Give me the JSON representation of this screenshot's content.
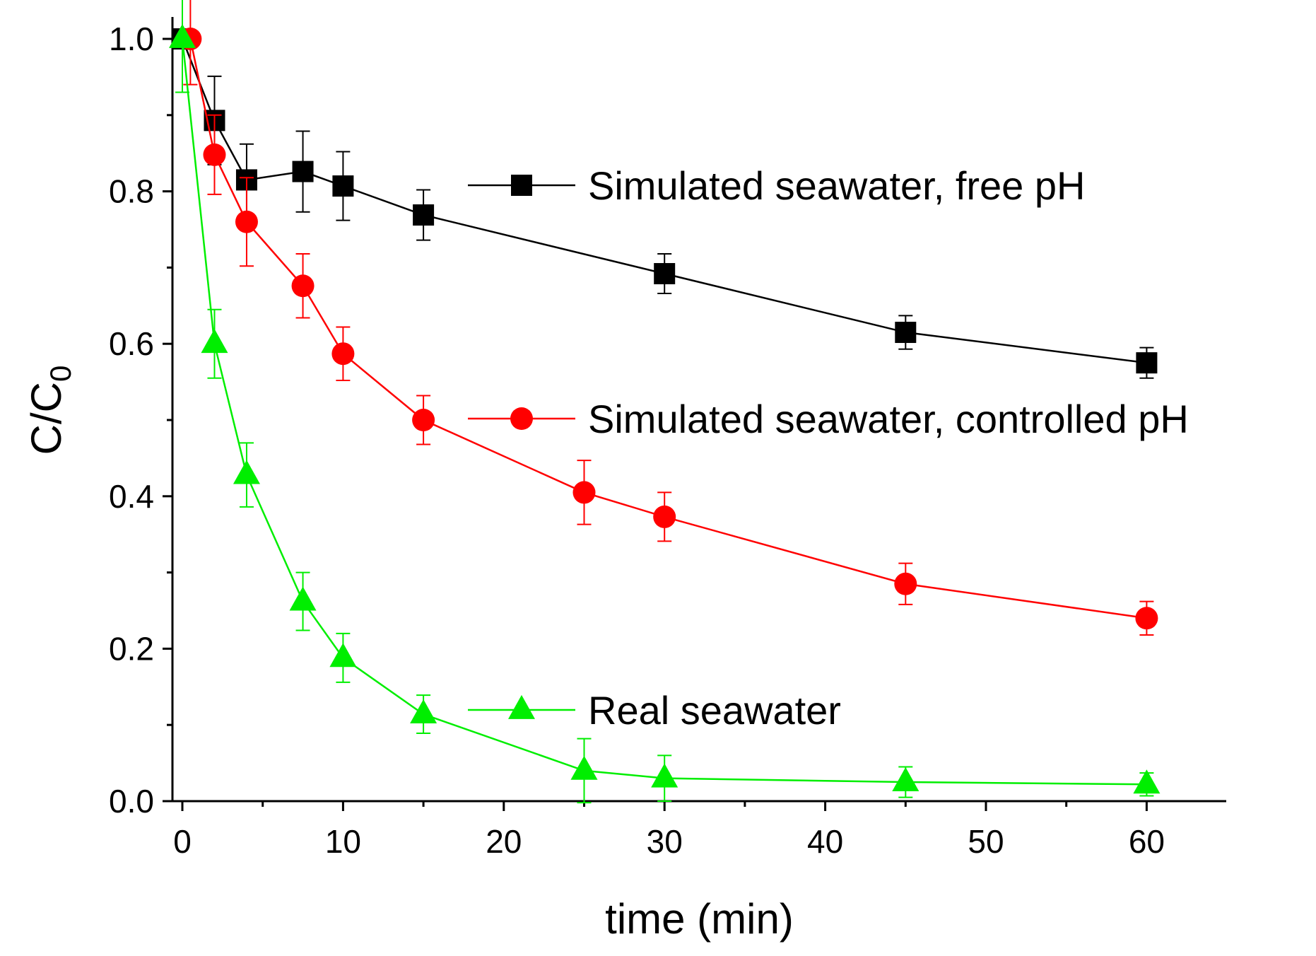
{
  "chart_data": {
    "type": "line",
    "title": "",
    "xlabel": "time (min)",
    "ylabel_main": "C/C",
    "ylabel_sub": "0",
    "xlim": [
      -1,
      65
    ],
    "ylim": [
      0,
      1.0
    ],
    "x_ticks": [
      0,
      10,
      20,
      30,
      40,
      50,
      60
    ],
    "x_tick_labels": [
      "0",
      "10",
      "20",
      "30",
      "40",
      "50",
      "60"
    ],
    "y_ticks": [
      0,
      0.2,
      0.4,
      0.6,
      0.8,
      1.0
    ],
    "y_tick_labels": [
      "0.0",
      "0.2",
      "0.4",
      "0.6",
      "0.8",
      "1.0"
    ],
    "x_minor_ticks": [
      5,
      15,
      25,
      35,
      45,
      55
    ],
    "y_minor_ticks": [
      0.1,
      0.3,
      0.5,
      0.7,
      0.9
    ],
    "grid": false,
    "series": [
      {
        "name": "Simulated seawater, free pH",
        "color": "#000000",
        "marker": "square",
        "x": [
          0,
          2,
          4,
          7.5,
          10,
          15,
          30,
          45,
          60
        ],
        "values": [
          1.0,
          0.893,
          0.815,
          0.826,
          0.807,
          0.769,
          0.692,
          0.615,
          0.575
        ],
        "errors": [
          0.07,
          0.058,
          0.047,
          0.053,
          0.045,
          0.033,
          0.026,
          0.022,
          0.02
        ]
      },
      {
        "name": "Simulated seawater, controlled pH",
        "color": "#ff0000",
        "marker": "circle",
        "x": [
          0.5,
          2,
          4,
          7.5,
          10,
          15,
          25,
          30,
          45,
          60
        ],
        "values": [
          1.0,
          0.848,
          0.76,
          0.676,
          0.587,
          0.5,
          0.405,
          0.373,
          0.285,
          0.24
        ],
        "errors": [
          0.06,
          0.052,
          0.058,
          0.042,
          0.035,
          0.032,
          0.042,
          0.032,
          0.027,
          0.022
        ]
      },
      {
        "name": "Real seawater",
        "color": "#00ee00",
        "marker": "triangle",
        "x": [
          0,
          2,
          4,
          7.5,
          10,
          15,
          25,
          30,
          45,
          60
        ],
        "values": [
          1.0,
          0.6,
          0.428,
          0.262,
          0.188,
          0.114,
          0.04,
          0.03,
          0.025,
          0.022
        ],
        "errors": [
          0.07,
          0.045,
          0.042,
          0.038,
          0.032,
          0.025,
          0.042,
          0.03,
          0.02,
          0.015
        ]
      }
    ]
  }
}
